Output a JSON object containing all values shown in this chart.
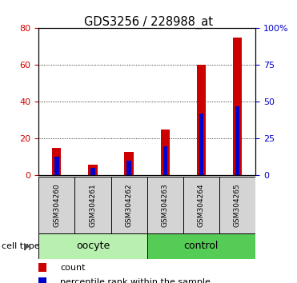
{
  "title": "GDS3256 / 228988_at",
  "samples": [
    "GSM304260",
    "GSM304261",
    "GSM304262",
    "GSM304263",
    "GSM304264",
    "GSM304265"
  ],
  "red_values": [
    15,
    6,
    13,
    25,
    60,
    75
  ],
  "blue_values": [
    13,
    5,
    10,
    20,
    42,
    47
  ],
  "groups": [
    {
      "label": "oocyte",
      "indices": [
        0,
        1,
        2
      ],
      "color": "#b8f0b0"
    },
    {
      "label": "control",
      "indices": [
        3,
        4,
        5
      ],
      "color": "#55cc55"
    }
  ],
  "left_ylim": [
    0,
    80
  ],
  "right_ylim": [
    0,
    100
  ],
  "left_yticks": [
    0,
    20,
    40,
    60,
    80
  ],
  "right_yticks": [
    0,
    25,
    50,
    75,
    100
  ],
  "right_yticklabels": [
    "0",
    "25",
    "50",
    "75",
    "100%"
  ],
  "left_color": "#cc0000",
  "right_color": "#0000cc",
  "bar_red": "#cc0000",
  "bar_blue": "#0000cc",
  "bar_width": 0.25,
  "blue_bar_width": 0.12,
  "legend_count_label": "count",
  "legend_pct_label": "percentile rank within the sample",
  "cell_type_label": "cell type"
}
